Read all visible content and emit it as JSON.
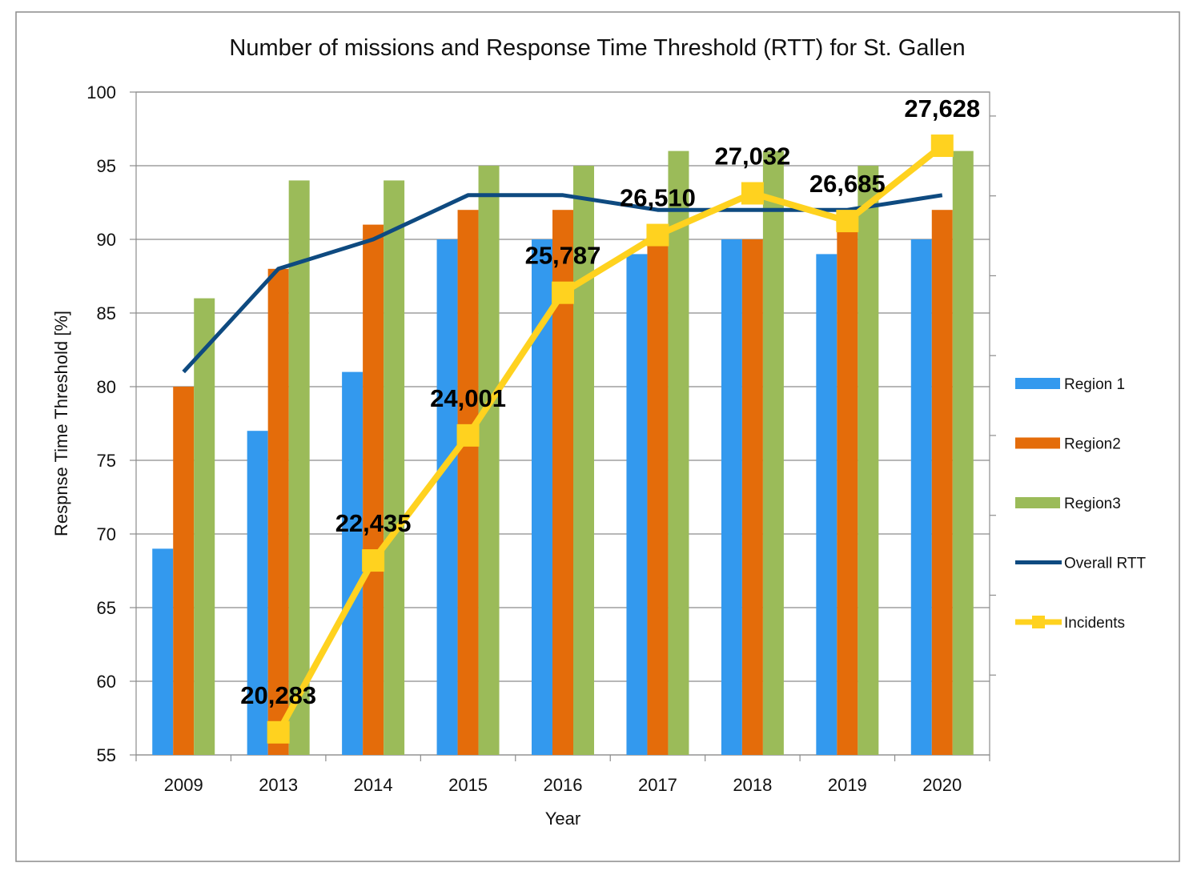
{
  "chart_data": {
    "type": "bar",
    "title": "Number of missions and Response Time Threshold (RTT) for St. Gallen",
    "xlabel": "Year",
    "ylabel": "Respnse Time Threshold [%]",
    "ylim": [
      55,
      100
    ],
    "yticks": [
      55,
      60,
      65,
      70,
      75,
      80,
      85,
      90,
      95,
      100
    ],
    "grid": true,
    "legend_position": "right",
    "categories": [
      "2009",
      "2013",
      "2014",
      "2015",
      "2016",
      "2017",
      "2018",
      "2019",
      "2020"
    ],
    "series": [
      {
        "name": "Region 1",
        "type": "bar",
        "color": "#3399ee",
        "values": [
          69,
          77,
          81,
          90,
          90,
          89,
          90,
          89,
          90
        ]
      },
      {
        "name": "Region2",
        "type": "bar",
        "color": "#e46c0a",
        "values": [
          80,
          88,
          91,
          92,
          92,
          91,
          90,
          91,
          92
        ]
      },
      {
        "name": "Region3",
        "type": "bar",
        "color": "#9bbb59",
        "values": [
          86,
          94,
          94,
          95,
          95,
          96,
          96,
          95,
          96
        ]
      },
      {
        "name": "Overall RTT",
        "type": "line",
        "color": "#0e4a80",
        "values": [
          81,
          88,
          90,
          93,
          93,
          92,
          92,
          92,
          93
        ]
      }
    ],
    "incidents": {
      "name": "Incidents",
      "type": "line",
      "color": "#ffd21f",
      "categories": [
        "2013",
        "2014",
        "2015",
        "2016",
        "2017",
        "2018",
        "2019",
        "2020"
      ],
      "values": [
        20283,
        22435,
        24001,
        25787,
        26510,
        27032,
        26685,
        27628
      ],
      "labels": [
        "20,283",
        "22,435",
        "24,001",
        "25,787",
        "26,510",
        "27,032",
        "26,685",
        "27,628"
      ],
      "secondary_axis_range": [
        20000,
        28300
      ]
    }
  }
}
